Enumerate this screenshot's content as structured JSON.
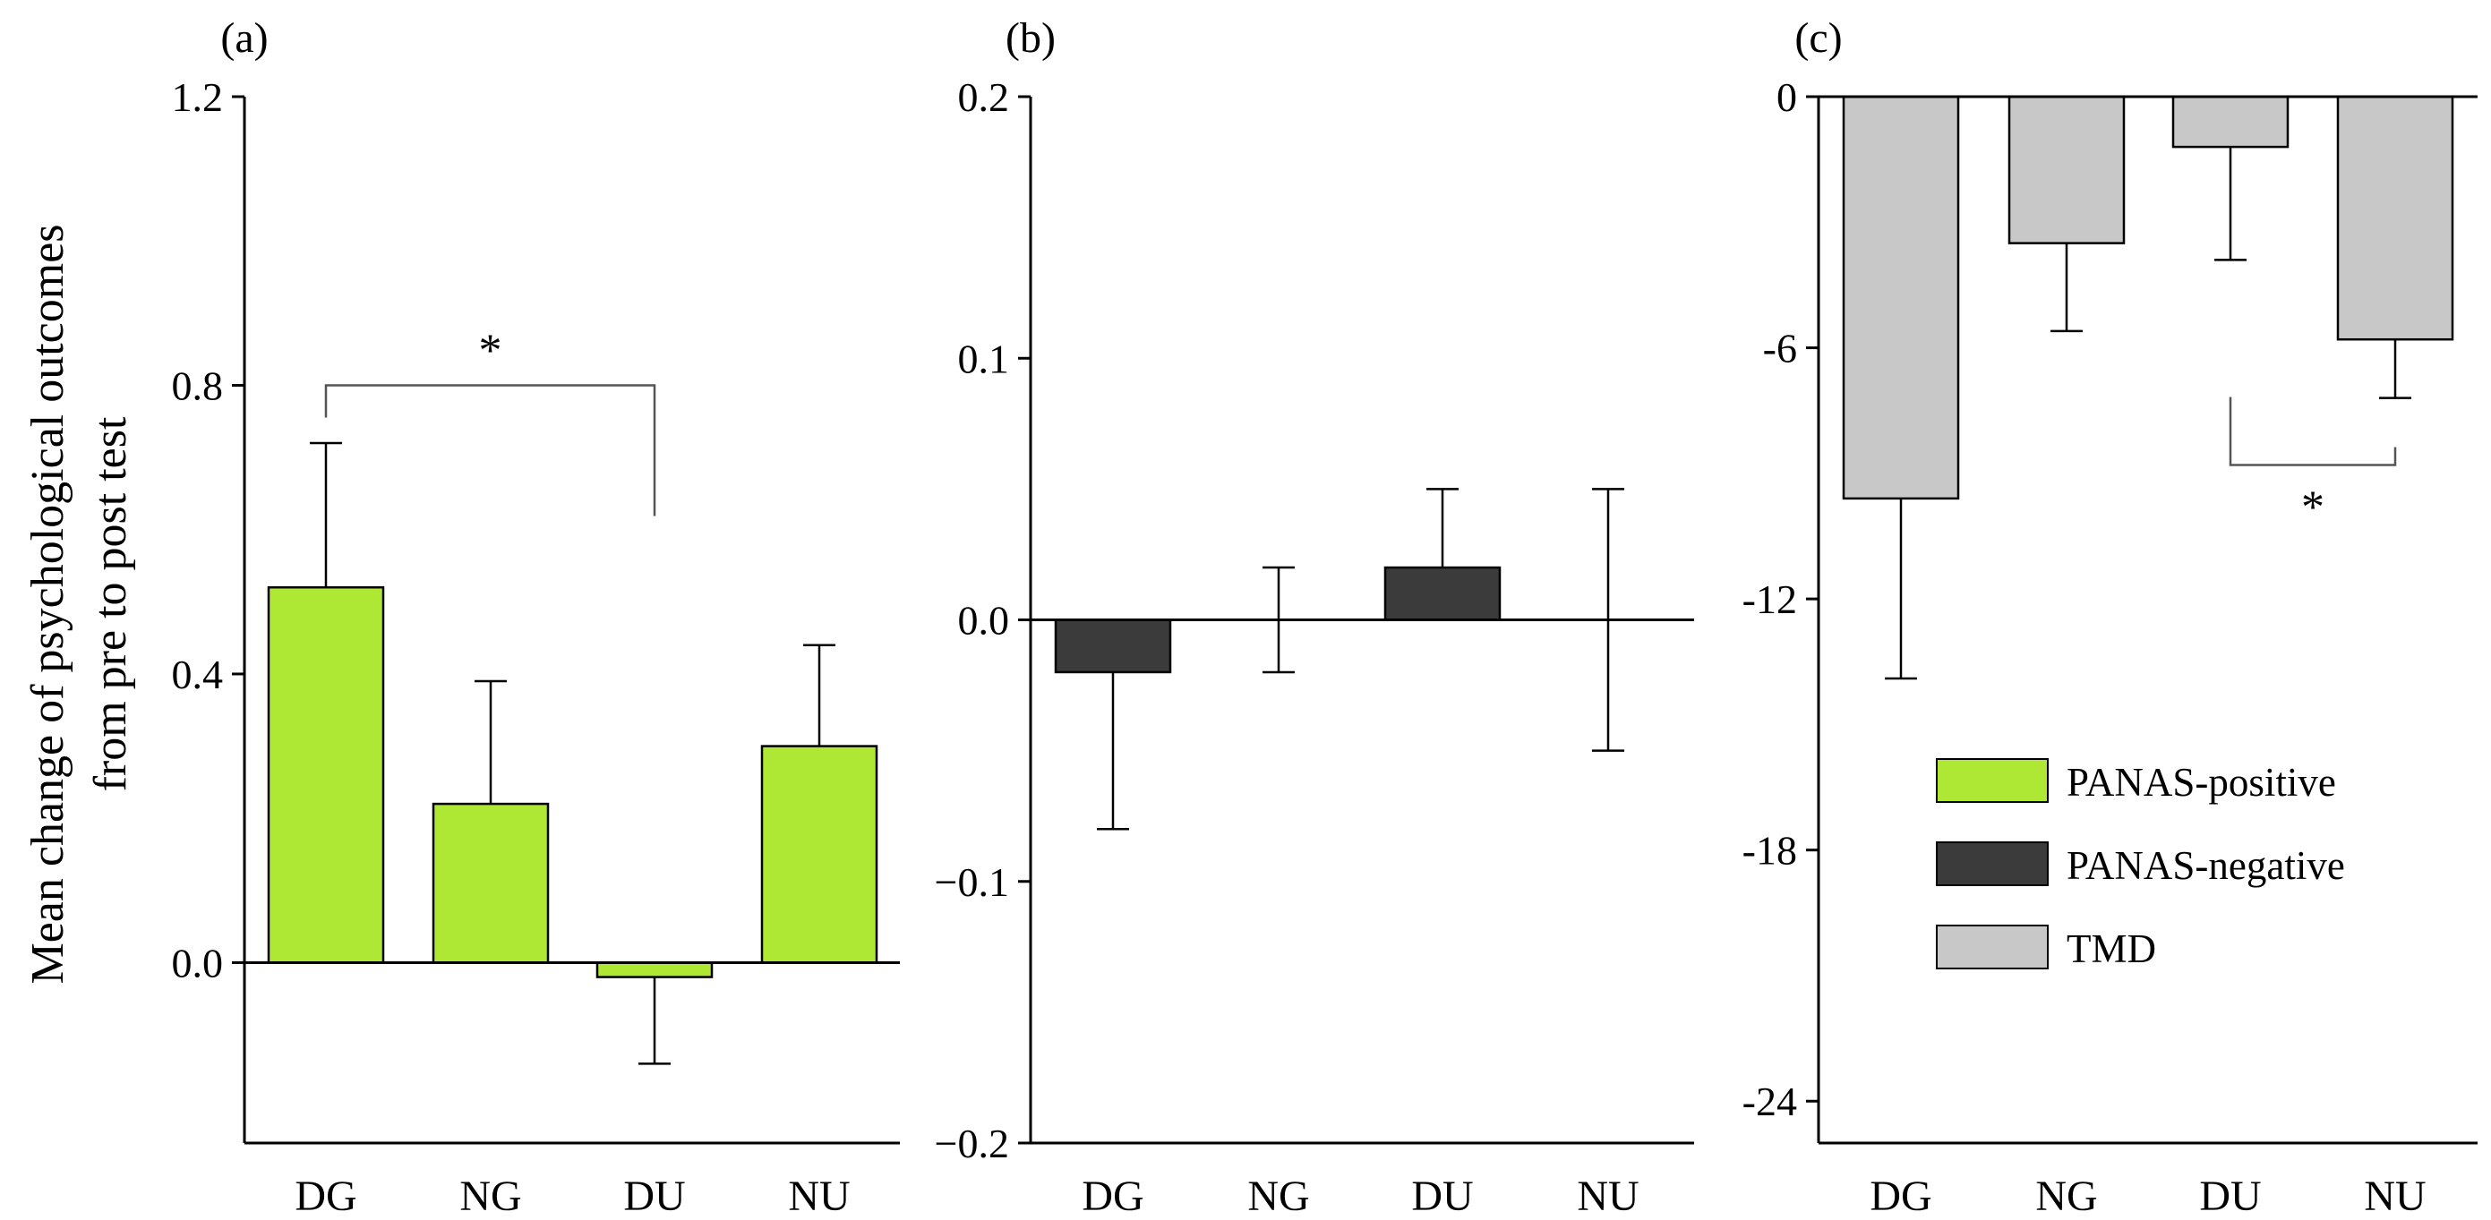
{
  "figure": {
    "ylabel_lines": [
      "Mean change of psychological outcomes",
      "from pre to post test"
    ]
  },
  "colors": {
    "PANAS-positive": "#aee835",
    "PANAS-negative": "#3b3b3b",
    "TMD": "#c8c8c8",
    "axis": "#000000",
    "bracket": "#555555"
  },
  "legend": {
    "entries": [
      "PANAS-positive",
      "PANAS-negative",
      "TMD"
    ]
  },
  "chart_data": [
    {
      "panel_label": "(a)",
      "type": "bar",
      "series_name": "PANAS-positive",
      "categories": [
        "DG",
        "NG",
        "DU",
        "NU"
      ],
      "values": [
        0.52,
        0.22,
        -0.02,
        0.3
      ],
      "errors": [
        0.2,
        0.17,
        0.12,
        0.14
      ],
      "ylim": [
        -0.25,
        1.2
      ],
      "yticks": [
        0.0,
        0.4,
        0.8,
        1.2
      ],
      "ytick_labels": [
        "0.0",
        "0.4",
        "0.8",
        "1.2"
      ],
      "significance": [
        {
          "from": "DG",
          "to": "DU",
          "label": "*",
          "y": 0.8
        }
      ]
    },
    {
      "panel_label": "(b)",
      "type": "bar",
      "series_name": "PANAS-negative",
      "categories": [
        "DG",
        "NG",
        "DU",
        "NU"
      ],
      "values": [
        -0.02,
        0.0,
        0.02,
        0.0
      ],
      "errors": [
        0.06,
        0.02,
        0.03,
        0.05
      ],
      "ylim": [
        -0.2,
        0.2
      ],
      "yticks": [
        -0.2,
        -0.1,
        0.0,
        0.1,
        0.2
      ],
      "ytick_labels": [
        "−0.2",
        "−0.1",
        "0.0",
        "0.1",
        "0.2"
      ],
      "significance": []
    },
    {
      "panel_label": "(c)",
      "type": "bar",
      "series_name": "TMD",
      "categories": [
        "DG",
        "NG",
        "DU",
        "NU"
      ],
      "values": [
        -9.6,
        -3.5,
        -1.2,
        -5.8
      ],
      "errors": [
        4.3,
        2.1,
        2.7,
        1.4
      ],
      "ylim": [
        -25,
        0
      ],
      "yticks": [
        0,
        -6,
        -12,
        -18,
        -24
      ],
      "ytick_labels": [
        "0",
        "-6",
        "-12",
        "-18",
        "-24"
      ],
      "significance": [
        {
          "from": "DU",
          "to": "NU",
          "label": "*",
          "y": -8.8
        }
      ]
    }
  ]
}
